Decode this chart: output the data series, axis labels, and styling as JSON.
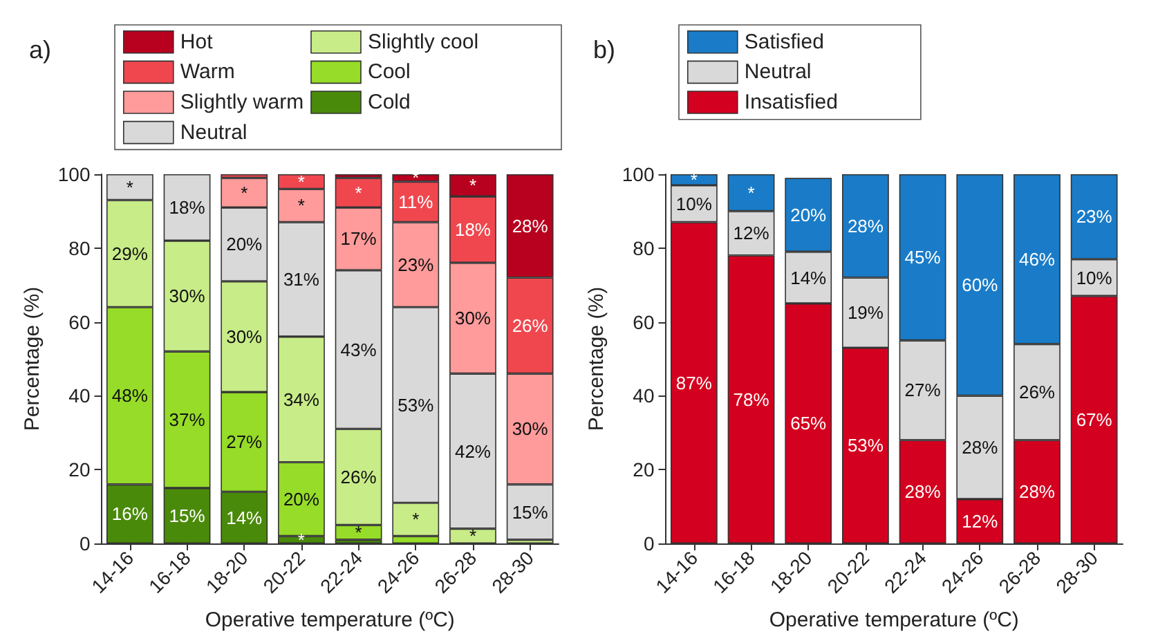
{
  "chart_data": [
    {
      "type": "bar",
      "title": "a)",
      "xlabel": "Operative temperature (ºC)",
      "ylabel": "Percentage (%)",
      "stacked": true,
      "legend": "top",
      "categories": [
        "14-16",
        "16-18",
        "18-20",
        "20-22",
        "22-24",
        "24-26",
        "26-28",
        "28-30"
      ],
      "ylim": [
        0,
        100
      ],
      "yticks": [
        0,
        20,
        40,
        60,
        80,
        100
      ],
      "series": [
        {
          "name": "Cold",
          "color": "#4a8a0a",
          "values": [
            16,
            15,
            14,
            2,
            1,
            null,
            null,
            null
          ],
          "value_labels": [
            "16%",
            "15%",
            "14%",
            "*",
            null,
            null,
            null,
            null
          ]
        },
        {
          "name": "Cool",
          "color": "#96dc28",
          "values": [
            48,
            37,
            27,
            20,
            4,
            2,
            null,
            null
          ],
          "value_labels": [
            "48%",
            "37%",
            "27%",
            "20%",
            "*",
            null,
            null,
            null
          ]
        },
        {
          "name": "Slightly cool",
          "color": "#c8ec88",
          "values": [
            29,
            30,
            30,
            34,
            26,
            9,
            4,
            1
          ],
          "value_labels": [
            "29%",
            "30%",
            "30%",
            "34%",
            "26%",
            "*",
            "*",
            null
          ]
        },
        {
          "name": "Neutral",
          "color": "#d9d9d9",
          "values": [
            7,
            18,
            20,
            31,
            43,
            53,
            42,
            15
          ],
          "value_labels": [
            "*",
            "18%",
            "20%",
            "31%",
            "43%",
            "53%",
            "42%",
            "15%"
          ]
        },
        {
          "name": "Slightly warm",
          "color": "#ff9b9b",
          "values": [
            null,
            null,
            8,
            9,
            17,
            23,
            30,
            30
          ],
          "value_labels": [
            null,
            null,
            "*",
            "*",
            "17%",
            "23%",
            "30%",
            "30%"
          ]
        },
        {
          "name": "Warm",
          "color": "#f0474f",
          "values": [
            null,
            null,
            1,
            4,
            8,
            11,
            18,
            26
          ],
          "value_labels": [
            null,
            null,
            null,
            "*",
            "*",
            "11%",
            "18%",
            "26%"
          ]
        },
        {
          "name": "Hot",
          "color": "#b8001f",
          "values": [
            null,
            null,
            null,
            null,
            1,
            2,
            6,
            28
          ],
          "value_labels": [
            null,
            null,
            null,
            null,
            null,
            "*",
            "*",
            "28%"
          ]
        }
      ]
    },
    {
      "type": "bar",
      "title": "b)",
      "xlabel": "Operative temperature (ºC)",
      "ylabel": "Percentage (%)",
      "stacked": true,
      "legend": "top",
      "categories": [
        "14-16",
        "16-18",
        "18-20",
        "20-22",
        "22-24",
        "24-26",
        "26-28",
        "28-30"
      ],
      "ylim": [
        0,
        100
      ],
      "yticks": [
        0,
        20,
        40,
        60,
        80,
        100
      ],
      "series": [
        {
          "name": "Insatisfied",
          "color": "#d4001f",
          "values": [
            87,
            78,
            65,
            53,
            28,
            12,
            28,
            67
          ],
          "value_labels": [
            "87%",
            "78%",
            "65%",
            "53%",
            "28%",
            "12%",
            "28%",
            "67%"
          ]
        },
        {
          "name": "Neutral",
          "color": "#d9d9d9",
          "values": [
            10,
            12,
            14,
            19,
            27,
            28,
            26,
            10
          ],
          "value_labels": [
            "10%",
            "12%",
            "14%",
            "19%",
            "27%",
            "28%",
            "26%",
            "10%"
          ]
        },
        {
          "name": "Satisfied",
          "color": "#1a7cc8",
          "values": [
            3,
            10,
            20,
            28,
            45,
            60,
            46,
            23
          ],
          "value_labels": [
            "*",
            "*",
            "20%",
            "28%",
            "45%",
            "60%",
            "46%",
            "23%"
          ]
        }
      ]
    }
  ]
}
